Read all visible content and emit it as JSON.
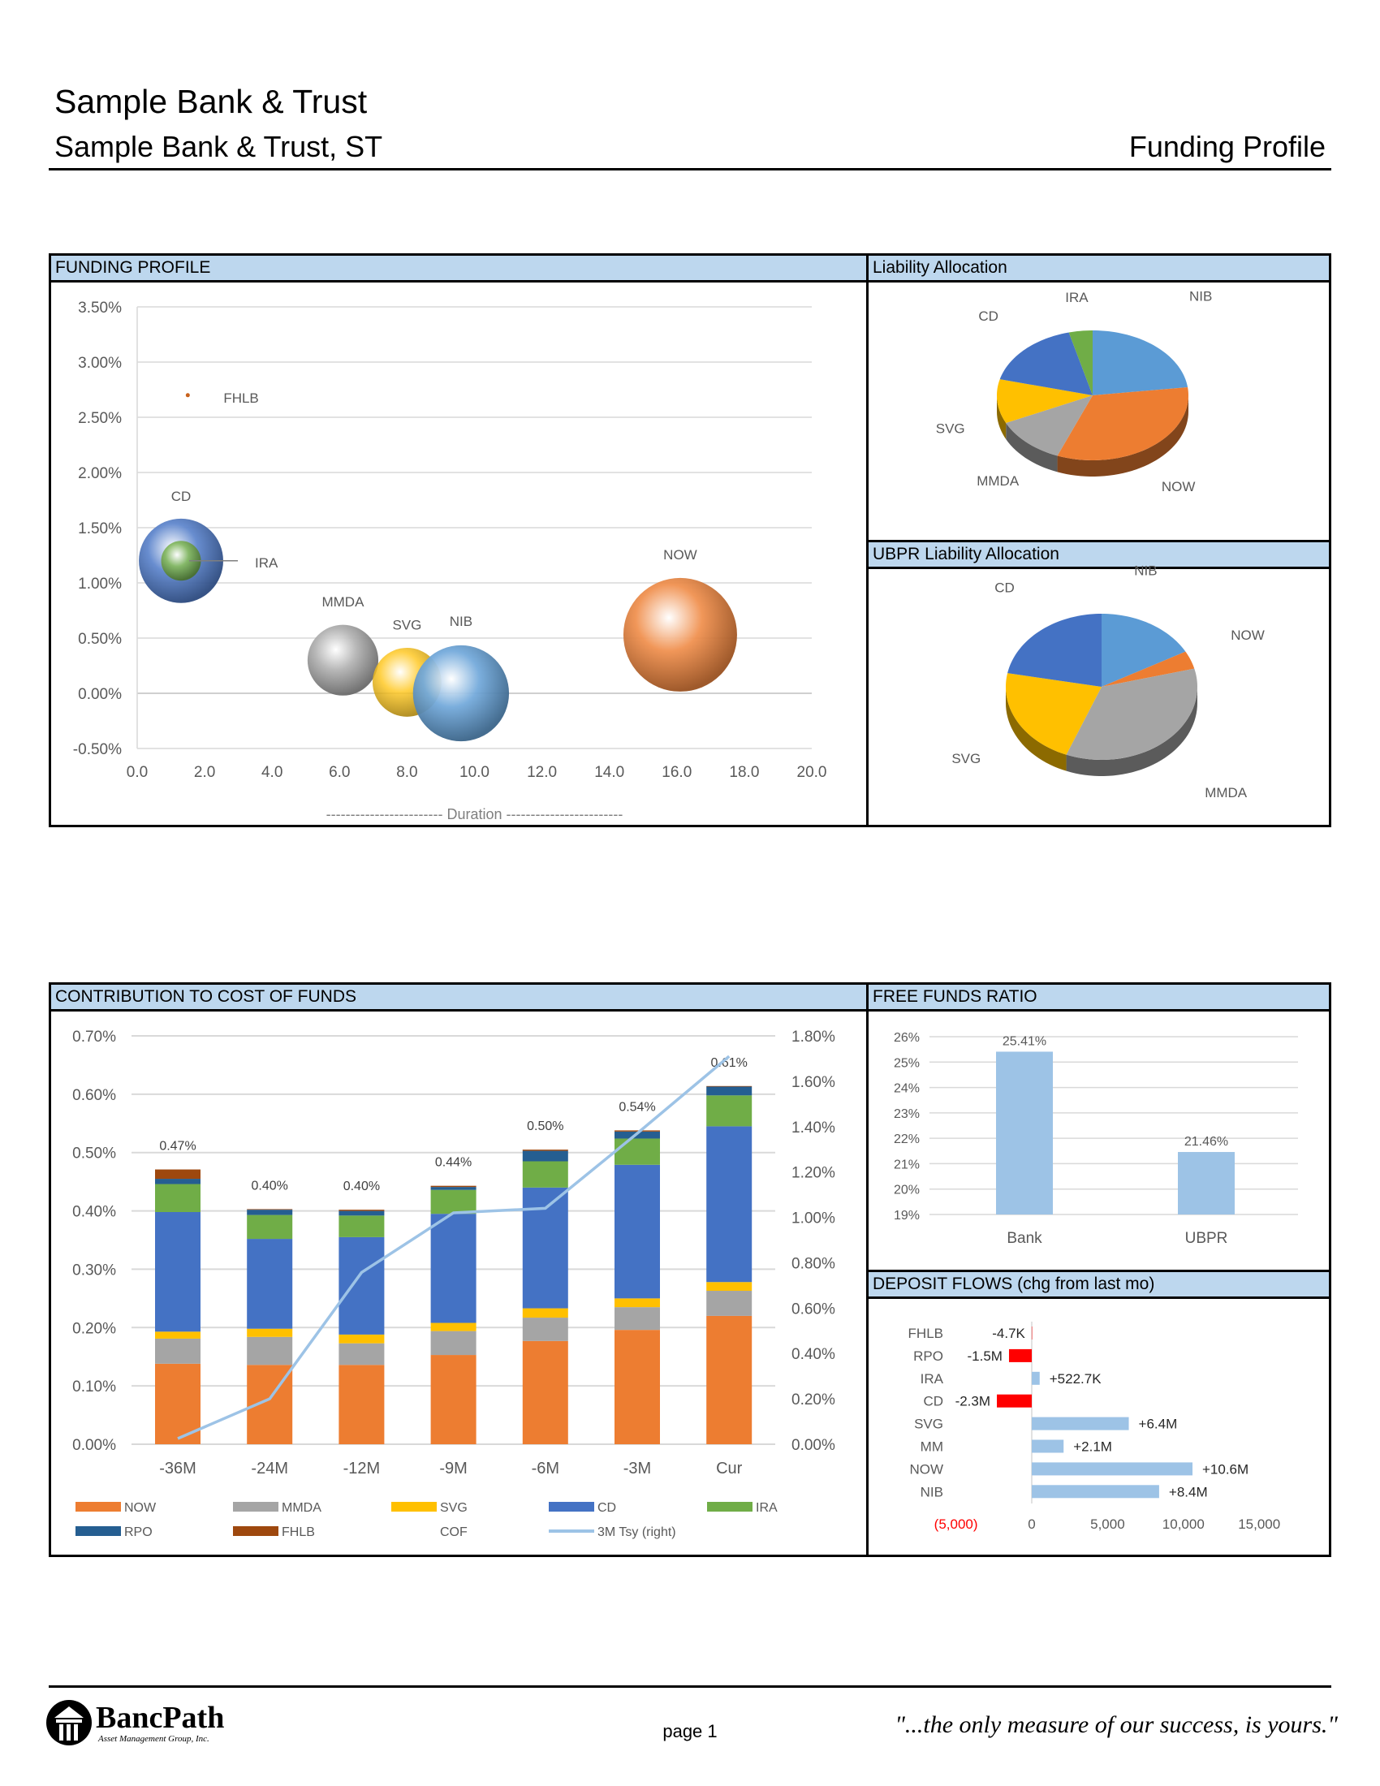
{
  "header": {
    "title": "Sample Bank & Trust",
    "subtitle": "Sample Bank & Trust, ST",
    "report": "Funding Profile"
  },
  "sections": {
    "funding_profile": "FUNDING PROFILE",
    "liability_allocation": "Liability Allocation",
    "ubpr_allocation": "UBPR Liability Allocation",
    "cost_of_funds": "CONTRIBUTION TO COST OF FUNDS",
    "free_funds": "FREE FUNDS RATIO",
    "deposit_flows": "DEPOSIT FLOWS (chg from last mo)"
  },
  "colors": {
    "NOW": "#ed7d31",
    "MMDA": "#a5a5a5",
    "SVG": "#ffc000",
    "CD": "#4472c4",
    "IRA": "#70ad47",
    "RPO": "#255e91",
    "FHLB": "#9e480e",
    "NIB": "#5b9bd5",
    "tsy": "#9dc3e6",
    "neg": "#ff0000",
    "pos": "#9dc3e6",
    "header": "#bdd7ee"
  },
  "chart_data": [
    {
      "type": "scatter",
      "title": "FUNDING PROFILE",
      "xlabel": "------------------------ Duration ------------------------",
      "ylabel": "",
      "xlim": [
        0,
        20
      ],
      "ylim": [
        -0.5,
        3.5
      ],
      "xticks": [
        "0.0",
        "2.0",
        "4.0",
        "6.0",
        "8.0",
        "10.0",
        "12.0",
        "14.0",
        "16.0",
        "18.0",
        "20.0"
      ],
      "yticks": [
        "-0.50%",
        "0.00%",
        "0.50%",
        "1.00%",
        "1.50%",
        "2.00%",
        "2.50%",
        "3.00%",
        "3.50%"
      ],
      "points": [
        {
          "name": "FHLB",
          "x": 1.5,
          "y": 2.7,
          "size": 0.05
        },
        {
          "name": "CD",
          "x": 1.3,
          "y": 1.2,
          "size": 27
        },
        {
          "name": "IRA",
          "x": 1.3,
          "y": 1.2,
          "size": 6
        },
        {
          "name": "MMDA",
          "x": 6.1,
          "y": 0.3,
          "size": 19
        },
        {
          "name": "SVG",
          "x": 8.0,
          "y": 0.1,
          "size": 18
        },
        {
          "name": "NIB",
          "x": 9.6,
          "y": 0.0,
          "size": 35
        },
        {
          "name": "NOW",
          "x": 16.1,
          "y": 0.53,
          "size": 49
        }
      ]
    },
    {
      "type": "pie",
      "title": "Liability Allocation",
      "slices": [
        {
          "name": "NIB",
          "value": 23
        },
        {
          "name": "NOW",
          "value": 33
        },
        {
          "name": "MMDA",
          "value": 12
        },
        {
          "name": "SVG",
          "value": 11
        },
        {
          "name": "CD",
          "value": 17
        },
        {
          "name": "IRA",
          "value": 4
        }
      ]
    },
    {
      "type": "pie",
      "title": "UBPR Liability Allocation",
      "slices": [
        {
          "name": "NIB",
          "value": 17
        },
        {
          "name": "NOW",
          "value": 4
        },
        {
          "name": "MMDA",
          "value": 35
        },
        {
          "name": "SVG",
          "value": 22
        },
        {
          "name": "CD",
          "value": 22
        }
      ]
    },
    {
      "type": "bar",
      "title": "CONTRIBUTION TO COST OF FUNDS",
      "stacked": true,
      "categories": [
        "-36M",
        "-24M",
        "-12M",
        "-9M",
        "-6M",
        "-3M",
        "Cur"
      ],
      "ylim": [
        0,
        0.7
      ],
      "y2lim": [
        0,
        1.8
      ],
      "yticks": [
        "0.00%",
        "0.10%",
        "0.20%",
        "0.30%",
        "0.40%",
        "0.50%",
        "0.60%",
        "0.70%"
      ],
      "y2ticks": [
        "0.00%",
        "0.20%",
        "0.40%",
        "0.60%",
        "0.80%",
        "1.00%",
        "1.20%",
        "1.40%",
        "1.60%",
        "1.80%"
      ],
      "series": [
        {
          "name": "NOW",
          "values": [
            0.138,
            0.136,
            0.136,
            0.153,
            0.177,
            0.196,
            0.22
          ]
        },
        {
          "name": "MMDA",
          "values": [
            0.043,
            0.048,
            0.037,
            0.041,
            0.04,
            0.039,
            0.043
          ]
        },
        {
          "name": "SVG",
          "values": [
            0.012,
            0.014,
            0.015,
            0.014,
            0.016,
            0.015,
            0.015
          ]
        },
        {
          "name": "CD",
          "values": [
            0.205,
            0.154,
            0.167,
            0.187,
            0.207,
            0.229,
            0.267
          ]
        },
        {
          "name": "IRA",
          "values": [
            0.048,
            0.041,
            0.037,
            0.041,
            0.045,
            0.045,
            0.053
          ]
        },
        {
          "name": "RPO",
          "values": [
            0.009,
            0.009,
            0.008,
            0.005,
            0.018,
            0.012,
            0.015
          ]
        },
        {
          "name": "FHLB",
          "values": [
            0.016,
            0.001,
            0.002,
            0.002,
            0.002,
            0.002,
            0.001
          ]
        }
      ],
      "totals": [
        "0.47%",
        "0.40%",
        "0.40%",
        "0.44%",
        "0.50%",
        "0.54%",
        "0.61%"
      ],
      "line": {
        "name": "3M Tsy (right)",
        "values": [
          0.025,
          0.2,
          0.757,
          1.02,
          1.04,
          1.37,
          1.71
        ]
      },
      "legend": [
        "NOW",
        "MMDA",
        "SVG",
        "CD",
        "IRA",
        "RPO",
        "FHLB",
        "COF",
        "3M Tsy (right)"
      ]
    },
    {
      "type": "bar",
      "title": "FREE FUNDS RATIO",
      "categories": [
        "Bank",
        "UBPR"
      ],
      "values": [
        25.41,
        21.46
      ],
      "labels": [
        "25.41%",
        "21.46%"
      ],
      "ylim": [
        19,
        26
      ],
      "yticks": [
        "19%",
        "20%",
        "21%",
        "22%",
        "23%",
        "24%",
        "25%",
        "26%"
      ]
    },
    {
      "type": "bar",
      "orientation": "horizontal",
      "title": "DEPOSIT FLOWS (chg from last mo)",
      "categories": [
        "FHLB",
        "RPO",
        "IRA",
        "CD",
        "SVG",
        "MM",
        "NOW",
        "NIB"
      ],
      "values": [
        -4.7,
        -1500,
        522.7,
        -2300,
        6400,
        2100,
        10600,
        8400
      ],
      "labels": [
        "-4.7K",
        "-1.5M",
        "+522.7K",
        "-2.3M",
        "+6.4M",
        "+2.1M",
        "+10.6M",
        "+8.4M"
      ],
      "xlim": [
        -5000,
        15000
      ],
      "xticks": [
        "(5,000)",
        "0",
        "5,000",
        "10,000",
        "15,000"
      ]
    }
  ],
  "footer": {
    "logo": "BancPath",
    "logo_sub": "Asset Management Group, Inc.",
    "page": "page 1",
    "quote": "\"...the only measure of our success, is yours.\""
  }
}
